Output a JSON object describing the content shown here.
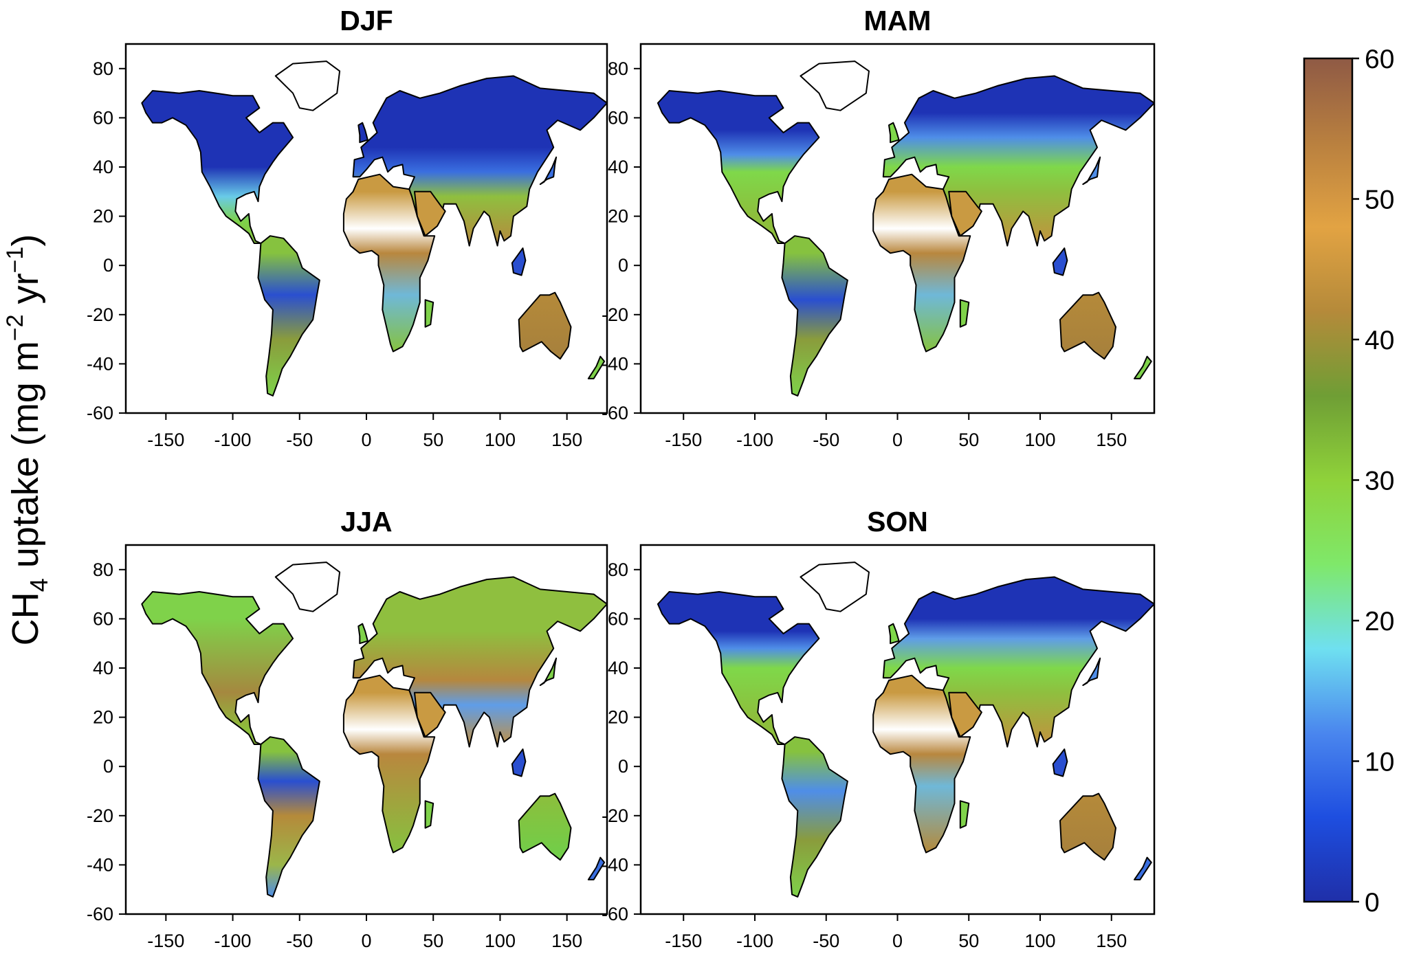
{
  "panels": [
    {
      "title": "DJF",
      "season": "DJF"
    },
    {
      "title": "MAM",
      "season": "MAM"
    },
    {
      "title": "JJA",
      "season": "JJA"
    },
    {
      "title": "SON",
      "season": "SON"
    }
  ],
  "x_ticks": [
    "-150",
    "-100",
    "-50",
    "0",
    "50",
    "100",
    "150"
  ],
  "y_ticks": [
    "80",
    "60",
    "40",
    "20",
    "0",
    "-20",
    "-40",
    "-60"
  ],
  "x_tick_values": [
    -150,
    -100,
    -50,
    0,
    50,
    100,
    150
  ],
  "y_tick_values": [
    80,
    60,
    40,
    20,
    0,
    -20,
    -40,
    -60
  ],
  "xlim": [
    -180,
    180
  ],
  "ylim": [
    -60,
    90
  ],
  "colorbar": {
    "ticks": [
      "60",
      "50",
      "40",
      "30",
      "20",
      "10",
      "0"
    ],
    "tick_values": [
      60,
      50,
      40,
      30,
      20,
      10,
      0
    ],
    "range": [
      0,
      60
    ],
    "colors": [
      "#1f2fa8",
      "#1e4ee0",
      "#4a86ee",
      "#6fe0f0",
      "#7fe86a",
      "#8fd23a",
      "#6f9e35",
      "#b58a3a",
      "#e2a343",
      "#b9803f",
      "#8f5a45"
    ]
  },
  "y_label": {
    "part1": "CH",
    "sub": "4",
    "part2": "  uptake  (mg m",
    "sup1": "−2",
    "part3": " yr",
    "sup2": "−1",
    "part4": ")"
  }
}
